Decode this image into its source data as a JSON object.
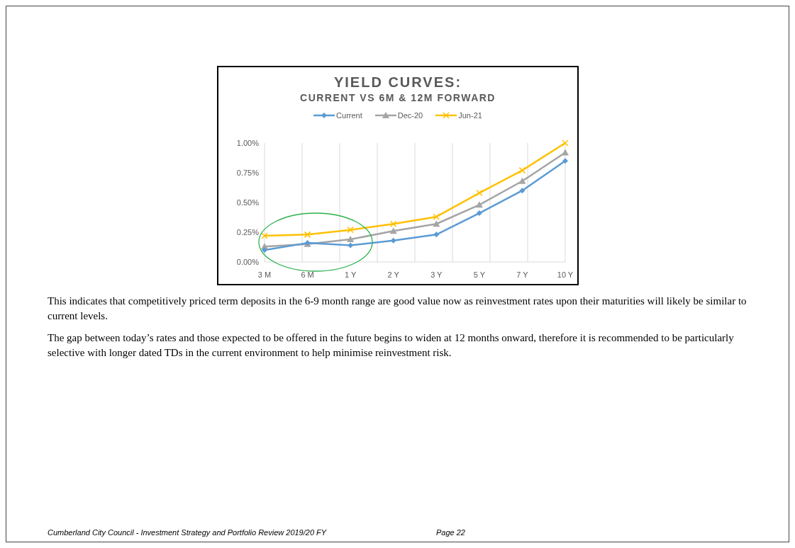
{
  "chart_data": {
    "type": "line",
    "title": "YIELD CURVES:",
    "subtitle": "CURRENT VS 6M & 12M FORWARD",
    "categories": [
      "3 M",
      "6 M",
      "1 Y",
      "2 Y",
      "3 Y",
      "5 Y",
      "7 Y",
      "10 Y"
    ],
    "series": [
      {
        "name": "Current",
        "color": "#5b9bd5",
        "marker": "diamond",
        "values": [
          0.1,
          0.16,
          0.14,
          0.18,
          0.23,
          0.41,
          0.6,
          0.85
        ]
      },
      {
        "name": "Dec-20",
        "color": "#a5a5a5",
        "marker": "triangle",
        "values": [
          0.13,
          0.15,
          0.19,
          0.26,
          0.32,
          0.48,
          0.68,
          0.92
        ]
      },
      {
        "name": "Jun-21",
        "color": "#ffc000",
        "marker": "cross",
        "values": [
          0.22,
          0.23,
          0.27,
          0.32,
          0.38,
          0.58,
          0.77,
          1.0
        ]
      }
    ],
    "ylim": [
      0,
      1
    ],
    "yticks": [
      {
        "value": 0,
        "label": "0.00%"
      },
      {
        "value": 0.25,
        "label": "0.25%"
      },
      {
        "value": 0.5,
        "label": "0.50%"
      },
      {
        "value": 0.75,
        "label": "0.75%"
      },
      {
        "value": 1,
        "label": "1.00%"
      }
    ],
    "grid": "x",
    "legend": "top",
    "line_style": "solid",
    "annotations": [
      "This indicates that competitively priced term deposits in the 6-9 month range are good value now as reinvestment rates upon their maturities will likely be similar to current levels.",
      "The gap between today’s rates and those expected to be offered in the future begins to widen at 12 months onward, therefore it is recommended to be particularly selective with longer dated TDs in the current environment to help minimise reinvestment risk.",
      "Cumberland City Council - Investment Strategy and Portfolio Review 2019/20 FY",
      "Page 22"
    ]
  }
}
